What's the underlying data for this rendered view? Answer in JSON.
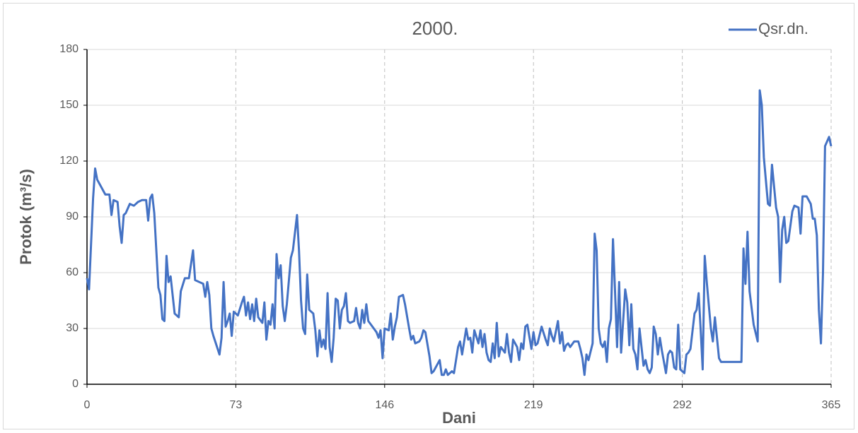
{
  "chart_data": {
    "type": "line",
    "title": "2000.",
    "xlabel": "Dani",
    "ylabel": "Protok (m³/s)",
    "x": [
      0,
      1,
      3,
      4,
      5,
      7,
      9,
      11,
      12,
      13,
      15,
      16,
      17,
      18,
      19,
      21,
      23,
      25,
      27,
      29,
      30,
      31,
      32,
      33,
      35,
      36,
      37,
      38,
      39,
      40,
      41,
      43,
      45,
      46,
      48,
      50,
      52,
      53,
      55,
      57,
      58,
      59,
      60,
      61,
      62,
      65,
      66,
      67,
      68,
      69,
      70,
      71,
      72,
      74,
      76,
      77,
      78,
      79,
      80,
      81,
      82,
      83,
      84,
      86,
      87,
      88,
      89,
      90,
      91,
      92,
      93,
      94,
      95,
      96,
      97,
      98,
      100,
      101,
      103,
      104,
      105,
      106,
      107,
      108,
      109,
      111,
      112,
      113,
      114,
      115,
      116,
      117,
      118,
      119,
      120,
      121,
      122,
      123,
      124,
      125,
      126,
      127,
      128,
      129,
      131,
      132,
      133,
      134,
      135,
      136,
      137,
      138,
      140,
      142,
      143,
      144,
      145,
      146,
      148,
      149,
      150,
      151,
      152,
      153,
      155,
      156,
      158,
      159,
      160,
      161,
      163,
      164,
      165,
      166,
      168,
      169,
      170,
      173,
      174,
      175,
      176,
      177,
      179,
      180,
      181,
      182,
      183,
      184,
      186,
      187,
      188,
      189,
      190,
      192,
      193,
      194,
      195,
      196,
      197,
      198,
      199,
      200,
      201,
      202,
      203,
      205,
      206,
      207,
      208,
      209,
      211,
      212,
      213,
      214,
      215,
      216,
      218,
      219,
      220,
      221,
      223,
      225,
      226,
      227,
      228,
      229,
      231,
      232,
      233,
      234,
      235,
      236,
      237,
      239,
      241,
      242,
      243,
      244,
      245,
      246,
      248,
      249,
      250,
      251,
      252,
      253,
      254,
      255,
      256,
      257,
      258,
      259,
      260,
      261,
      262,
      264,
      265,
      266,
      267,
      268,
      269,
      270,
      271,
      273,
      274,
      275,
      276,
      277,
      278,
      279,
      280,
      281,
      282,
      284,
      285,
      286,
      287,
      288,
      289,
      290,
      291,
      292,
      293,
      294,
      295,
      296,
      298,
      299,
      300,
      301,
      302,
      303,
      304,
      306,
      307,
      308,
      310,
      311,
      315,
      321,
      322,
      323,
      324,
      325,
      327,
      329,
      330,
      331,
      332,
      334,
      335,
      336,
      338,
      339,
      340,
      341,
      342,
      343,
      344,
      346,
      347,
      349,
      350,
      351,
      353,
      355,
      356,
      357,
      358,
      359,
      360,
      361,
      362,
      364,
      365
    ],
    "series": [
      {
        "name": "Qsr.dn.",
        "color": "#4472c4",
        "values": [
          57,
          51,
          100,
          116,
          110,
          106,
          102,
          102,
          91,
          99,
          98,
          85,
          76,
          91,
          92,
          97,
          96,
          98,
          99,
          99,
          88,
          100,
          102,
          92,
          52,
          48,
          35,
          34,
          69,
          55,
          58,
          38,
          36,
          50,
          57,
          57,
          72,
          56,
          55,
          54,
          47,
          55,
          48,
          30,
          26,
          16,
          25,
          55,
          31,
          34,
          38,
          26,
          39,
          37,
          44,
          47,
          37,
          44,
          35,
          43,
          34,
          46,
          36,
          33,
          44,
          24,
          34,
          32,
          43,
          30,
          70,
          57,
          64,
          42,
          34,
          43,
          68,
          72,
          91,
          72,
          45,
          30,
          27,
          59,
          40,
          38,
          29,
          15,
          29,
          20,
          24,
          19,
          49,
          20,
          12,
          25,
          46,
          45,
          30,
          40,
          42,
          49,
          34,
          33,
          34,
          41,
          33,
          30,
          40,
          33,
          43,
          34,
          31,
          28,
          25,
          29,
          14,
          30,
          29,
          38,
          24,
          31,
          36,
          47,
          48,
          43,
          30,
          24,
          26,
          22,
          23,
          25,
          29,
          28,
          15,
          6,
          7,
          13,
          5,
          5,
          8,
          5,
          7,
          6,
          13,
          20,
          23,
          16,
          30,
          24,
          25,
          17,
          29,
          22,
          29,
          20,
          27,
          17,
          13,
          12,
          22,
          14,
          33,
          15,
          20,
          17,
          27,
          17,
          12,
          24,
          20,
          13,
          22,
          19,
          31,
          32,
          19,
          28,
          21,
          22,
          31,
          24,
          21,
          30,
          26,
          23,
          34,
          22,
          28,
          18,
          21,
          22,
          20,
          23,
          23,
          19,
          14,
          5,
          16,
          13,
          22,
          81,
          72,
          30,
          22,
          20,
          23,
          12,
          30,
          35,
          78,
          50,
          20,
          55,
          17,
          51,
          44,
          21,
          43,
          19,
          16,
          8,
          30,
          10,
          13,
          8,
          6,
          9,
          31,
          27,
          16,
          25,
          18,
          6,
          16,
          18,
          17,
          9,
          8,
          32,
          8,
          7,
          6,
          16,
          17,
          19,
          38,
          40,
          49,
          30,
          8,
          69,
          55,
          30,
          23,
          36,
          14,
          12,
          12,
          12,
          73,
          54,
          82,
          50,
          32,
          23,
          158,
          150,
          122,
          97,
          96,
          118,
          95,
          90,
          55,
          83,
          90,
          76,
          77,
          93,
          96,
          95,
          81,
          101,
          101,
          97,
          89,
          89,
          80,
          40,
          22,
          60,
          128,
          133,
          128
        ]
      }
    ],
    "xlim": [
      0,
      365
    ],
    "xticks": [
      0,
      73,
      146,
      219,
      292,
      365
    ],
    "ylim": [
      0,
      180
    ],
    "yticks": [
      0,
      30,
      60,
      90,
      120,
      150,
      180
    ],
    "grid": true,
    "legend": "top-right"
  }
}
